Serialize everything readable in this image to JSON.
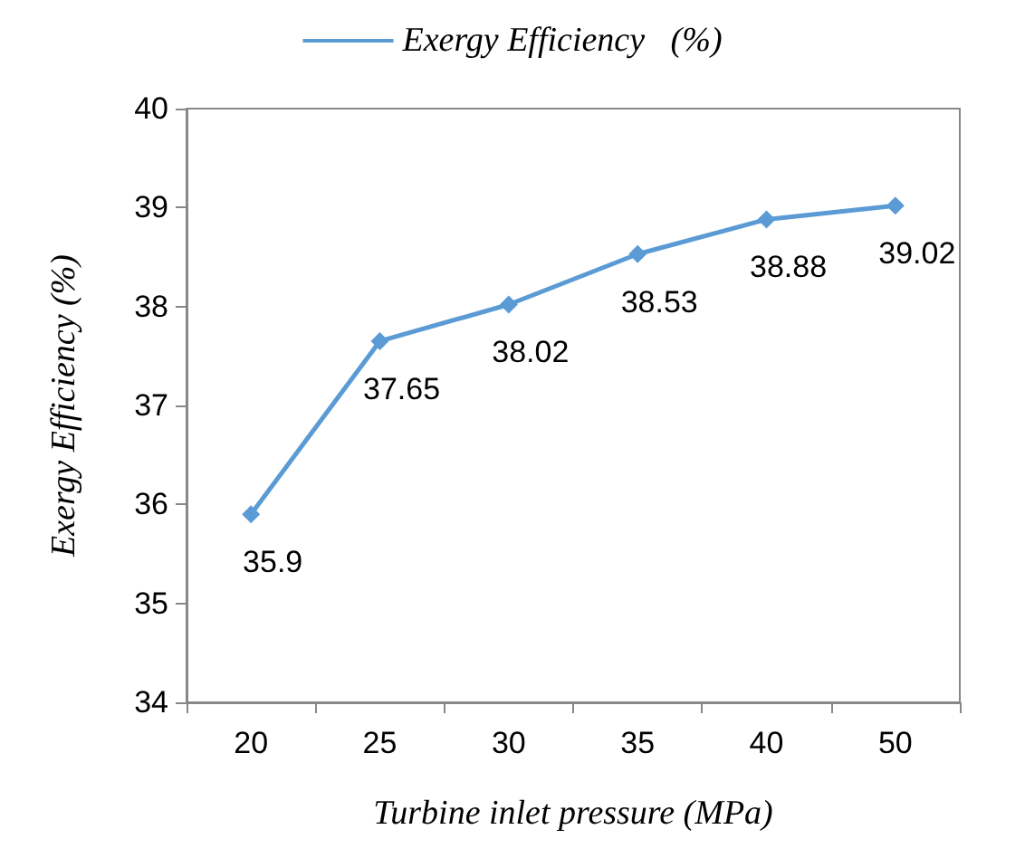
{
  "chart_data": {
    "type": "line",
    "xlabel": "Turbine inlet pressure (MPa)",
    "ylabel": "Exergy Efficiency (%)",
    "categories": [
      "20",
      "25",
      "30",
      "35",
      "40",
      "50"
    ],
    "series": [
      {
        "name": "Exergy Efficiency   (%)",
        "color": "#5b9bd5",
        "values": [
          35.9,
          37.65,
          38.02,
          38.53,
          38.88,
          39.02
        ]
      }
    ],
    "ylim": [
      34,
      40
    ],
    "yticks": [
      34,
      35,
      36,
      37,
      38,
      39,
      40
    ],
    "grid": false,
    "legend": "top",
    "marker": "diamond",
    "line_style": "solid",
    "data_labels": true
  }
}
